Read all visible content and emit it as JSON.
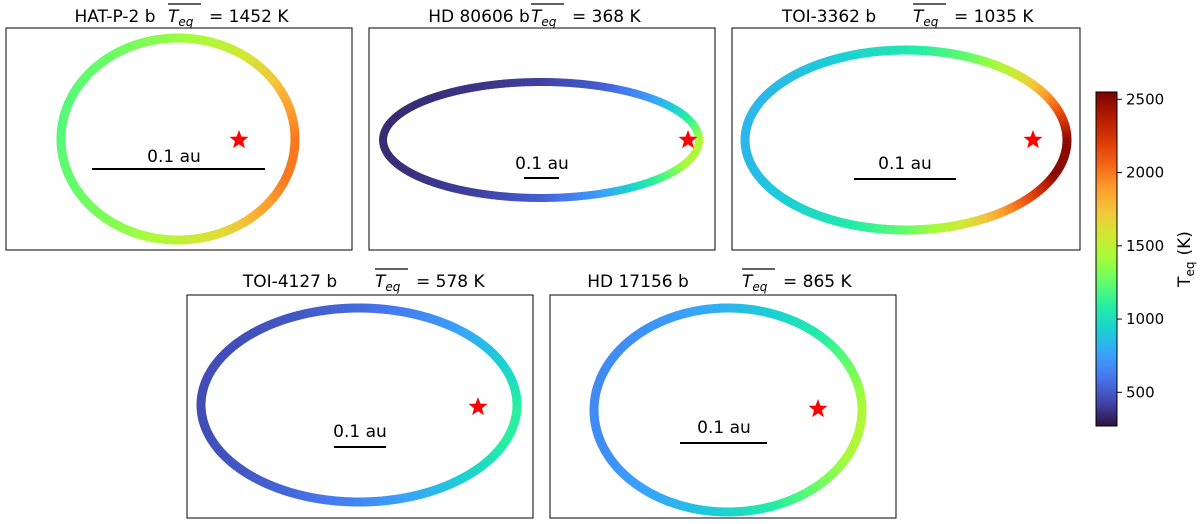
{
  "chart_data": {
    "type": "scatter",
    "description_unit": "au",
    "panels": [
      {
        "planet": "HAT-P-2 b",
        "mean_teq_label": "= 1452 K",
        "scale_label": "0.1 au",
        "orbit": {
          "temperatures_around_orbit_K": [
            2000,
            1850,
            1650,
            1500,
            1380,
            1300,
            1250,
            1220,
            1220,
            1250,
            1300,
            1380,
            1500,
            1650,
            1850,
            2000
          ]
        }
      },
      {
        "planet": "HD 80606 b",
        "mean_teq_label": "= 368 K",
        "scale_label": "0.1 au",
        "orbit": {
          "temperatures_around_orbit_K": [
            1450,
            1100,
            750,
            520,
            420,
            380,
            360,
            350,
            350,
            360,
            380,
            420,
            520,
            750,
            1100,
            1450
          ]
        }
      },
      {
        "planet": "TOI-3362 b",
        "mean_teq_label": "= 1035 K",
        "scale_label": "0.1 au",
        "orbit": {
          "temperatures_around_orbit_K": [
            2500,
            2050,
            1600,
            1250,
            1050,
            930,
            860,
            830,
            830,
            860,
            930,
            1050,
            1250,
            1600,
            2050,
            2500
          ]
        }
      },
      {
        "planet": "TOI-4127 b",
        "mean_teq_label": "= 578 K",
        "scale_label": "0.1 au",
        "orbit": {
          "temperatures_around_orbit_K": [
            1100,
            950,
            800,
            660,
            560,
            500,
            470,
            460,
            460,
            470,
            500,
            560,
            660,
            800,
            950,
            1100
          ]
        }
      },
      {
        "planet": "HD 17156 b",
        "mean_teq_label": "= 865 K",
        "scale_label": "0.1 au",
        "orbit": {
          "temperatures_around_orbit_K": [
            1450,
            1300,
            1100,
            950,
            820,
            740,
            690,
            670,
            670,
            690,
            740,
            820,
            950,
            1100,
            1300,
            1450
          ]
        }
      }
    ],
    "colorbar": {
      "label": "T",
      "label_sub": "eq",
      "label_unit": "(K)",
      "range": [
        270,
        2550
      ],
      "ticks": [
        "500",
        "1000",
        "1500",
        "2000",
        "2500"
      ],
      "tick_values": [
        500,
        1000,
        1500,
        2000,
        2500
      ]
    },
    "colormap": [
      "#30123b",
      "#4145ab",
      "#4675ed",
      "#39a2fc",
      "#1bcfd4",
      "#24eca6",
      "#61fc6c",
      "#a4fc3b",
      "#d1e834",
      "#f3c63a",
      "#fe9b2d",
      "#f36315",
      "#d93806",
      "#b11901",
      "#7a0402"
    ],
    "colors": {
      "star": "#ff0000",
      "frame": "#000000"
    }
  }
}
